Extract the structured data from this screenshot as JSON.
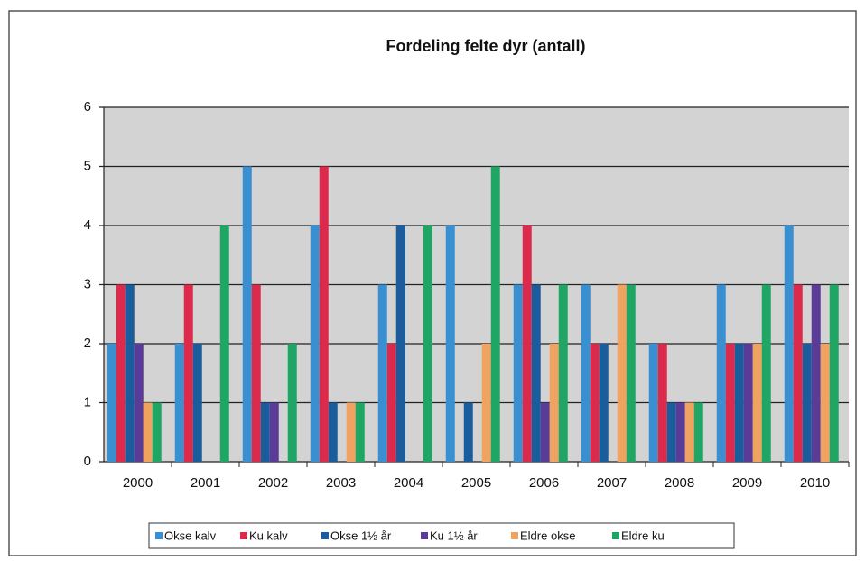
{
  "chart_data": {
    "type": "bar",
    "title": "Fordeling felte dyr (antall)",
    "categories": [
      "2000",
      "2001",
      "2002",
      "2003",
      "2004",
      "2005",
      "2006",
      "2007",
      "2008",
      "2009",
      "2010"
    ],
    "series": [
      {
        "name": "Okse kalv",
        "color": "#3a8fd0",
        "values": [
          2,
          2,
          5,
          4,
          3,
          4,
          3,
          3,
          2,
          3,
          4
        ]
      },
      {
        "name": "Ku kalv",
        "color": "#dc2a4c",
        "values": [
          3,
          3,
          3,
          5,
          2,
          0,
          4,
          2,
          2,
          2,
          3
        ]
      },
      {
        "name": "Okse 1½ år",
        "color": "#1b5c9c",
        "values": [
          3,
          2,
          1,
          1,
          4,
          1,
          3,
          2,
          1,
          2,
          2
        ]
      },
      {
        "name": "Ku 1½ år",
        "color": "#5a3b98",
        "values": [
          2,
          0,
          1,
          0,
          0,
          0,
          1,
          0,
          1,
          2,
          3
        ]
      },
      {
        "name": "Eldre okse",
        "color": "#f0a260",
        "values": [
          1,
          0,
          0,
          1,
          0,
          2,
          2,
          3,
          1,
          2,
          2
        ]
      },
      {
        "name": "Eldre ku",
        "color": "#1fa564",
        "values": [
          1,
          4,
          2,
          1,
          4,
          5,
          3,
          3,
          1,
          3,
          3
        ]
      }
    ],
    "ylim": [
      0,
      6
    ],
    "yticks": [
      0,
      1,
      2,
      3,
      4,
      5,
      6
    ],
    "grid": true
  }
}
